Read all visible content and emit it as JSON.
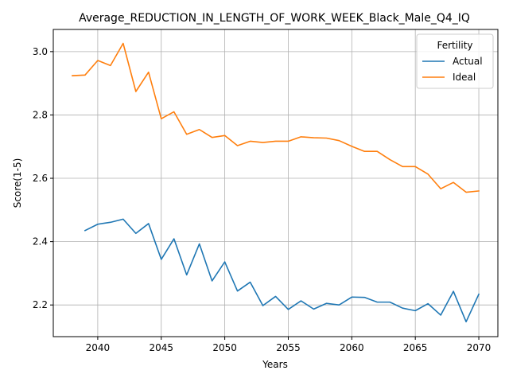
{
  "chart_data": {
    "type": "line",
    "title": "Average_REDUCTION_IN_LENGTH_OF_WORK_WEEK_Black_Male_Q4_IQ",
    "xlabel": "Years",
    "ylabel": "Score(1-5)",
    "xlim": [
      2036.5,
      2071.5
    ],
    "ylim": [
      2.1,
      3.07
    ],
    "xticks": [
      2040,
      2045,
      2050,
      2055,
      2060,
      2065,
      2070
    ],
    "yticks": [
      2.2,
      2.4,
      2.6,
      2.8,
      3.0
    ],
    "ytick_labels": [
      "2.2",
      "2.4",
      "2.6",
      "2.8",
      "3.0"
    ],
    "grid": true,
    "legend": {
      "title": "Fertility",
      "placement": "top-right"
    },
    "series": [
      {
        "name": "Actual",
        "color": "#1f77b4",
        "x": [
          2039,
          2040,
          2041,
          2042,
          2043,
          2044,
          2045,
          2046,
          2047,
          2048,
          2049,
          2050,
          2051,
          2052,
          2053,
          2054,
          2055,
          2056,
          2057,
          2058,
          2059,
          2060,
          2061,
          2062,
          2063,
          2064,
          2065,
          2066,
          2067,
          2068,
          2069,
          2070
        ],
        "y": [
          2.435,
          2.455,
          2.461,
          2.471,
          2.426,
          2.457,
          2.344,
          2.409,
          2.295,
          2.393,
          2.276,
          2.336,
          2.244,
          2.272,
          2.198,
          2.227,
          2.186,
          2.213,
          2.187,
          2.205,
          2.2,
          2.225,
          2.224,
          2.209,
          2.209,
          2.19,
          2.182,
          2.204,
          2.168,
          2.243,
          2.147,
          2.234
        ]
      },
      {
        "name": "Ideal",
        "color": "#ff7f0e",
        "x": [
          2038,
          2039,
          2040,
          2041,
          2042,
          2043,
          2044,
          2045,
          2046,
          2047,
          2048,
          2049,
          2050,
          2051,
          2052,
          2053,
          2054,
          2055,
          2056,
          2057,
          2058,
          2059,
          2060,
          2061,
          2062,
          2063,
          2064,
          2065,
          2066,
          2067,
          2068,
          2069,
          2070
        ],
        "y": [
          2.924,
          2.926,
          2.972,
          2.956,
          3.026,
          2.874,
          2.935,
          2.788,
          2.81,
          2.739,
          2.754,
          2.729,
          2.735,
          2.703,
          2.717,
          2.713,
          2.717,
          2.717,
          2.731,
          2.728,
          2.727,
          2.719,
          2.701,
          2.685,
          2.685,
          2.659,
          2.637,
          2.637,
          2.613,
          2.567,
          2.587,
          2.556,
          2.56
        ]
      }
    ]
  }
}
